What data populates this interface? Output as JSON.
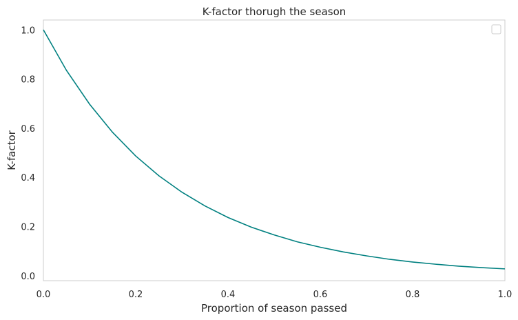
{
  "chart_data": {
    "type": "line",
    "title": "K-factor thorugh the season",
    "xlabel": "Proportion of season passed",
    "ylabel": "K-factor",
    "xlim": [
      0.0,
      1.0
    ],
    "ylim": [
      -0.02,
      1.04
    ],
    "x_ticks": [
      "0.0",
      "0.2",
      "0.4",
      "0.6",
      "0.8",
      "1.0"
    ],
    "y_ticks": [
      "0.0",
      "0.2",
      "0.4",
      "0.6",
      "0.8",
      "1.0"
    ],
    "grid": false,
    "legend": "top-right",
    "line_color": "#008080",
    "series": [
      {
        "x": [
          0.0,
          0.05,
          0.1,
          0.15,
          0.2,
          0.25,
          0.3,
          0.35,
          0.4,
          0.45,
          0.5,
          0.55,
          0.6,
          0.65,
          0.7,
          0.75,
          0.8,
          0.85,
          0.9,
          0.95,
          1.0
        ],
        "values": [
          1.0,
          0.835,
          0.698,
          0.583,
          0.487,
          0.407,
          0.34,
          0.284,
          0.237,
          0.198,
          0.166,
          0.138,
          0.116,
          0.097,
          0.081,
          0.067,
          0.056,
          0.047,
          0.039,
          0.033,
          0.028
        ]
      }
    ]
  }
}
